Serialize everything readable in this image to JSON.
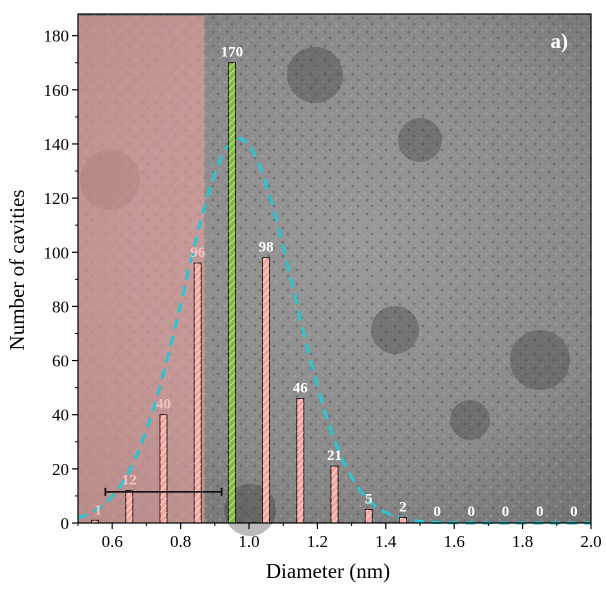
{
  "chart_data": {
    "type": "bar",
    "xlabel": "Diameter (nm)",
    "ylabel": "Number of cavities",
    "panel_label": "a)",
    "xlim": [
      0.5,
      2.0
    ],
    "ylim": [
      0,
      188
    ],
    "x_ticks": [
      0.6,
      0.8,
      1.0,
      1.2,
      1.4,
      1.6,
      1.8,
      2.0
    ],
    "x_tick_labels": [
      "0.6",
      "0.8",
      "1.0",
      "1.2",
      "1.4",
      "1.6",
      "1.8",
      "2.0"
    ],
    "y_ticks": [
      0,
      20,
      40,
      60,
      80,
      100,
      120,
      140,
      160,
      180
    ],
    "y_tick_labels": [
      "0",
      "20",
      "40",
      "60",
      "80",
      "100",
      "120",
      "140",
      "160",
      "180"
    ],
    "x": [
      0.55,
      0.65,
      0.75,
      0.85,
      0.95,
      1.05,
      1.15,
      1.25,
      1.35,
      1.45,
      1.55,
      1.65,
      1.75,
      1.85,
      1.95
    ],
    "values": [
      1,
      12,
      40,
      96,
      170,
      98,
      46,
      21,
      5,
      2,
      0,
      0,
      0,
      0,
      0
    ],
    "value_labels": [
      "1",
      "12",
      "40",
      "96",
      "170",
      "98",
      "46",
      "21",
      "5",
      "2",
      "0",
      "0",
      "0",
      "0",
      "0"
    ],
    "highlight_x": 0.95,
    "shaded_region_x": [
      0.5,
      0.87
    ],
    "error_bar": {
      "center": 0.75,
      "halfwidth": 0.17,
      "y": 11.5
    },
    "fit_curve": {
      "type": "gaussian",
      "peak_x": 0.97,
      "peak_y": 142,
      "sigma": 0.16
    },
    "grid": false,
    "legend": "none"
  },
  "colors": {
    "bar": "#f4a8a0",
    "bar_highlight": "#7fc03a",
    "fit": "#27c6d2",
    "shaded_region": "#e8a0a0",
    "bar_label": "#ffffff",
    "bar_label_in_shade": "#f5c2c2"
  }
}
